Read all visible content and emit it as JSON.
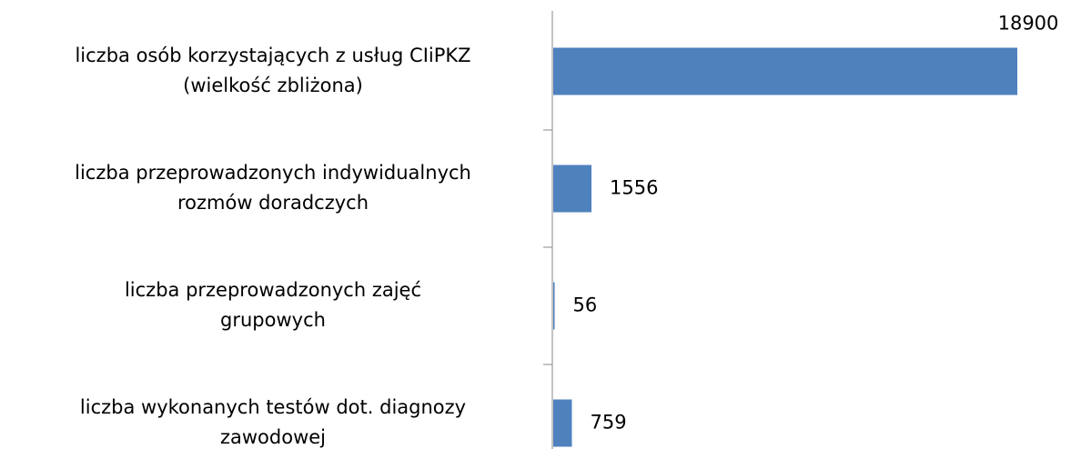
{
  "chart_data": {
    "type": "bar",
    "orientation": "horizontal",
    "categories": [
      "liczba osób korzystających z usług CIiPKZ\n(wielkość zbliżona)",
      "liczba przeprowadzonych indywidualnych\nrozmów doradczych",
      "liczba przeprowadzonych zajęć\ngrupowych",
      "liczba wykonanych testów dot. diagnozy\nzawodowej"
    ],
    "values": [
      18900,
      1556,
      56,
      759
    ],
    "color": "#4f81bd"
  }
}
